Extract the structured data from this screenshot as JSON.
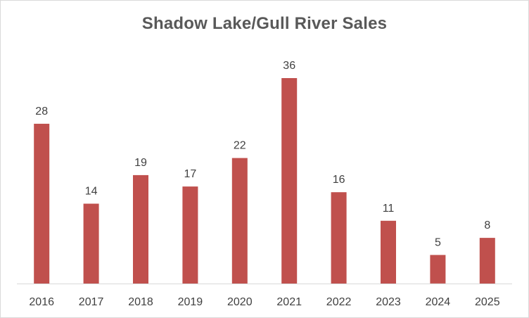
{
  "chart_data": {
    "type": "bar",
    "title": "Shadow Lake/Gull River Sales",
    "xlabel": "",
    "ylabel": "",
    "categories": [
      "2016",
      "2017",
      "2018",
      "2019",
      "2020",
      "2021",
      "2022",
      "2023",
      "2024",
      "2025"
    ],
    "values": [
      28,
      14,
      19,
      17,
      22,
      36,
      16,
      11,
      5,
      8
    ],
    "ylim": [
      0,
      40
    ],
    "grid": false,
    "legend": "none",
    "data_labels": true,
    "bar_color": "#c0504d",
    "axis_color": "#d9d9d9",
    "text_color": "#595959"
  }
}
